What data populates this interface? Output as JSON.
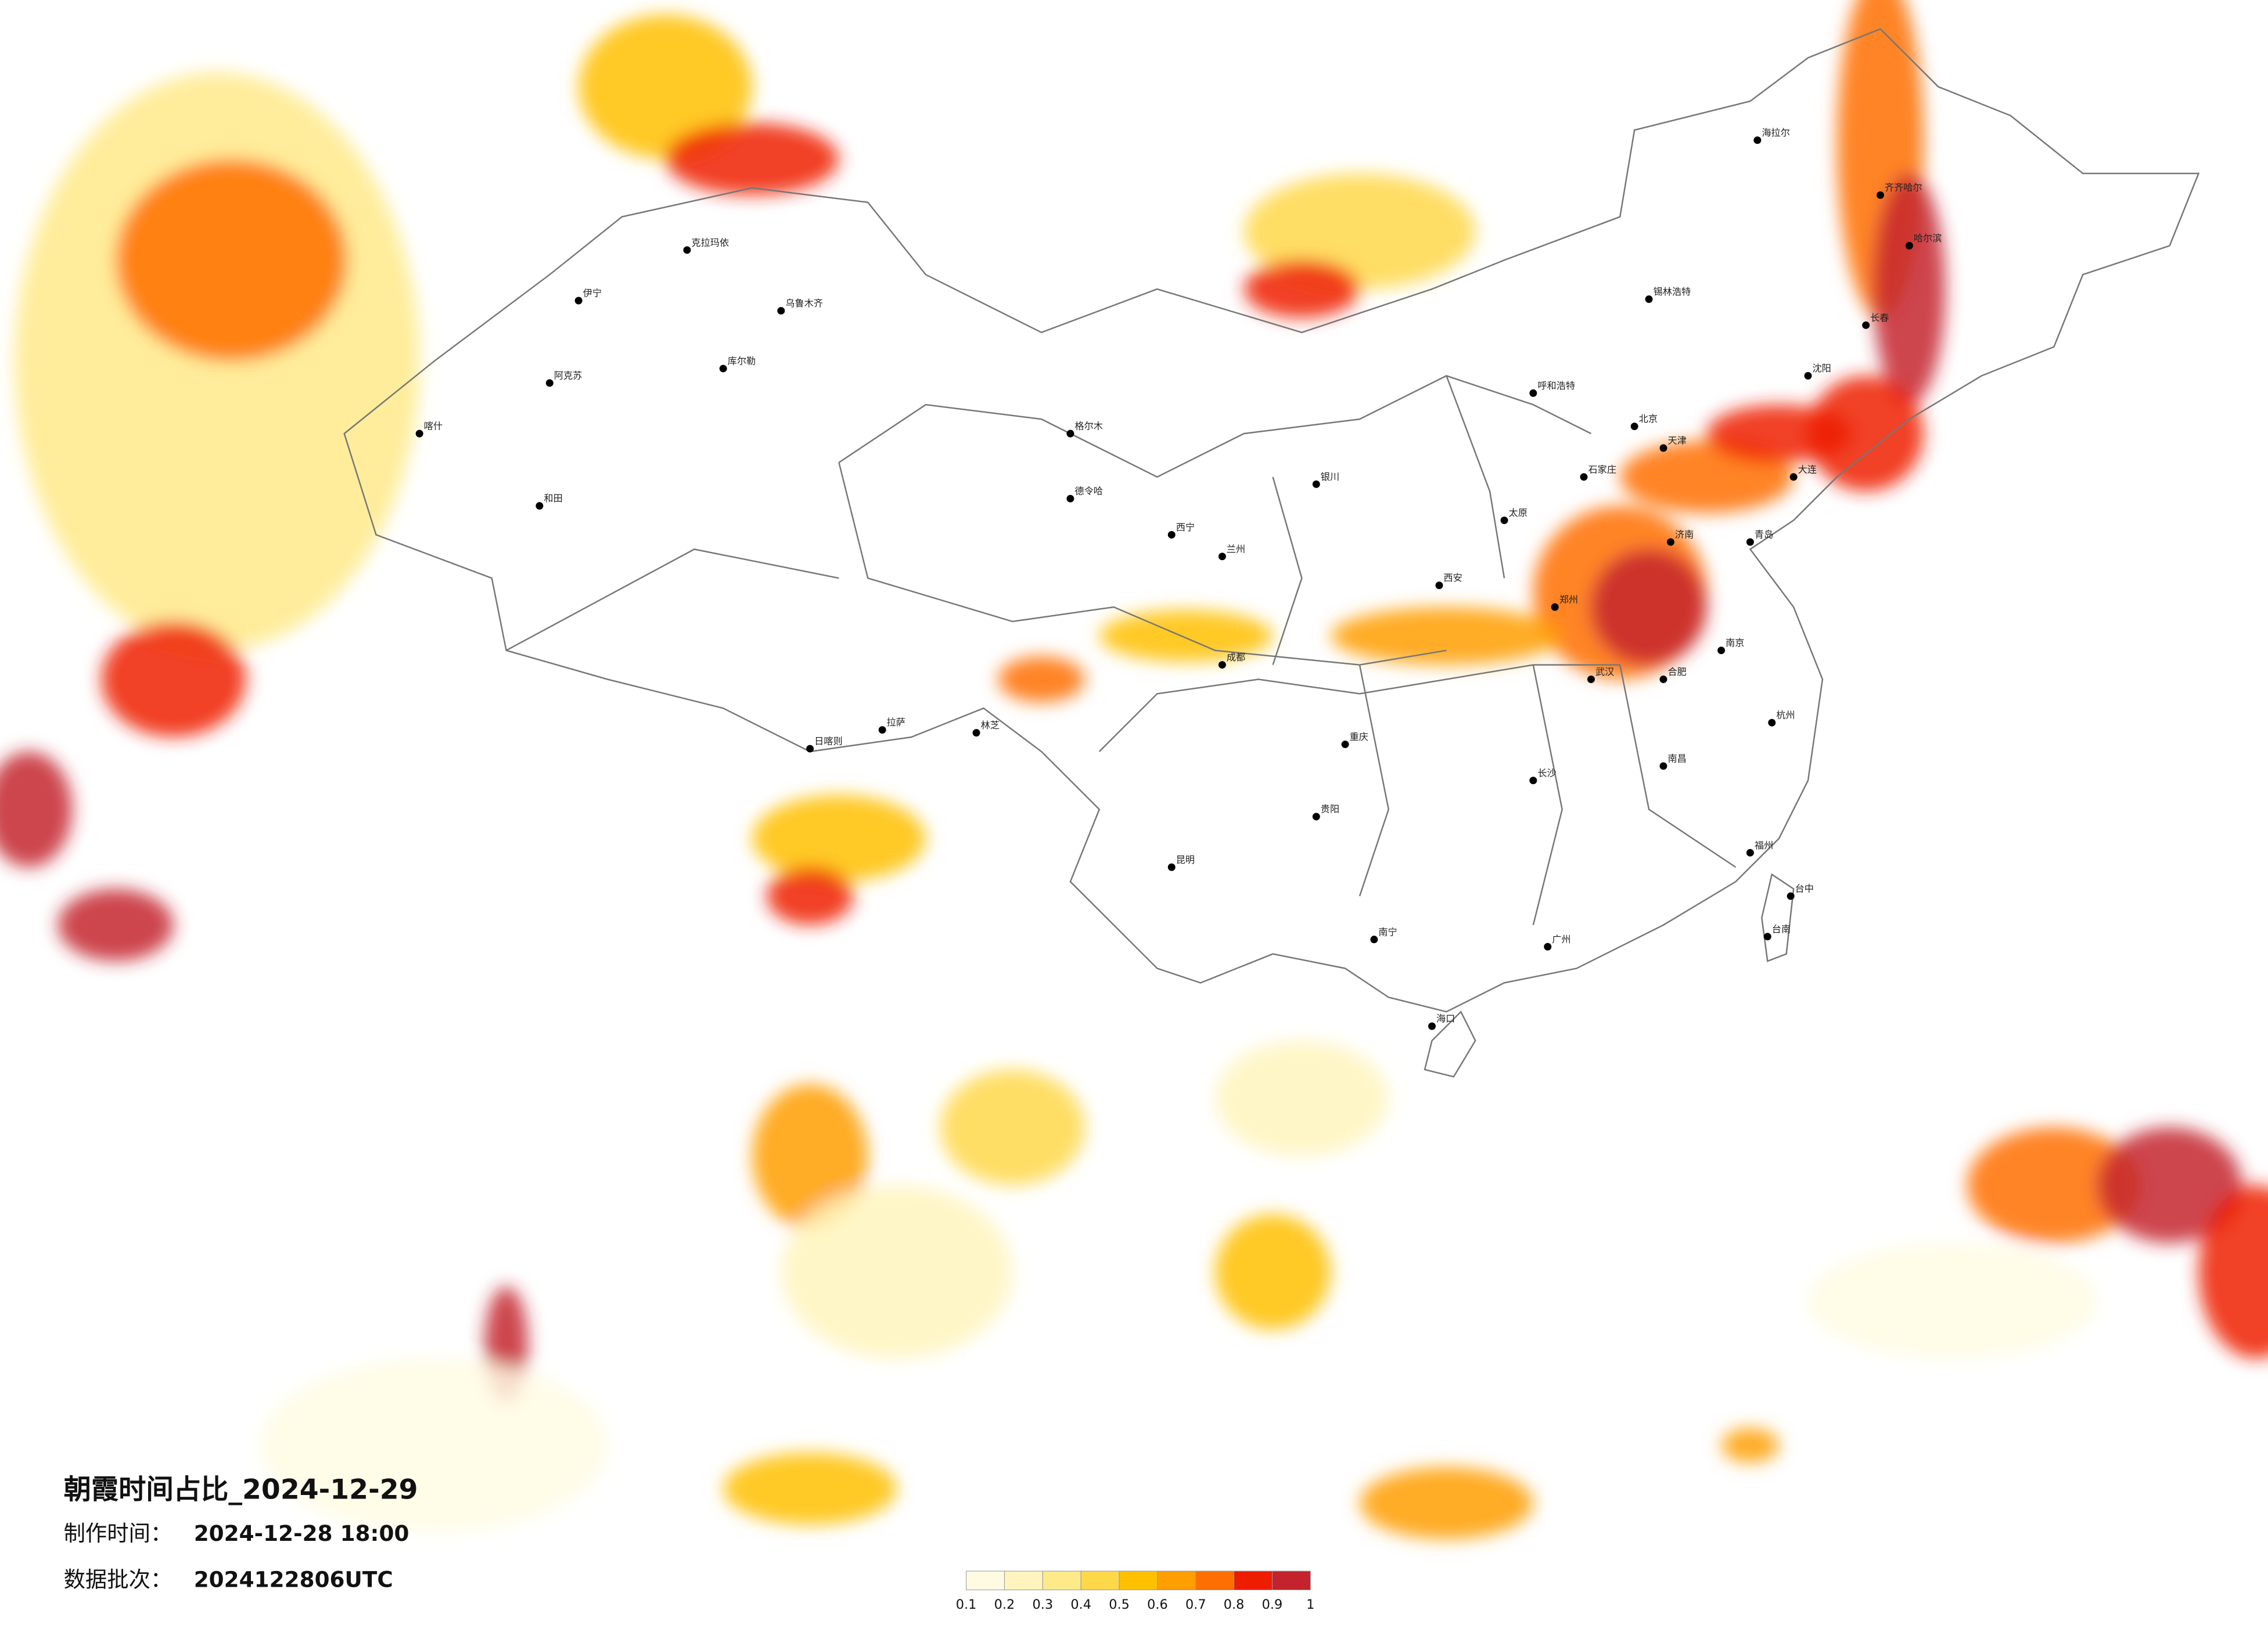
{
  "header": {
    "title": "朝霞时间占比_2024-12-29",
    "made_label": "制作时间：",
    "made_time": "2024-12-28 18:00",
    "batch_label": "数据批次：",
    "batch": "2024122806UTC"
  },
  "legend": {
    "ticks": [
      0.1,
      0.2,
      0.3,
      0.4,
      0.5,
      0.6,
      0.7,
      0.8,
      0.9,
      1
    ],
    "colors": [
      "#fffbe3",
      "#fff4bd",
      "#ffea8a",
      "#ffd84a",
      "#ffc000",
      "#ff9e00",
      "#ff6f00",
      "#ee1c00",
      "#c4232d"
    ]
  },
  "cities": [
    "海拉尔",
    "齐齐哈尔",
    "哈尔滨",
    "长春",
    "沈阳",
    "大连",
    "锡林浩特",
    "呼和浩特",
    "北京",
    "天津",
    "石家庄",
    "太原",
    "济南",
    "青岛",
    "郑州",
    "西安",
    "银川",
    "兰州",
    "西宁",
    "德令哈",
    "格尔木",
    "克拉玛依",
    "伊宁",
    "乌鲁木齐",
    "库尔勒",
    "阿克苏",
    "喀什",
    "和田",
    "拉萨",
    "日喀则",
    "林芝",
    "成都",
    "重庆",
    "贵阳",
    "昆明",
    "南宁",
    "海口",
    "广州",
    "长沙",
    "武汉",
    "南昌",
    "福州",
    "杭州",
    "南京",
    "合肥",
    "台中",
    "台南"
  ]
}
